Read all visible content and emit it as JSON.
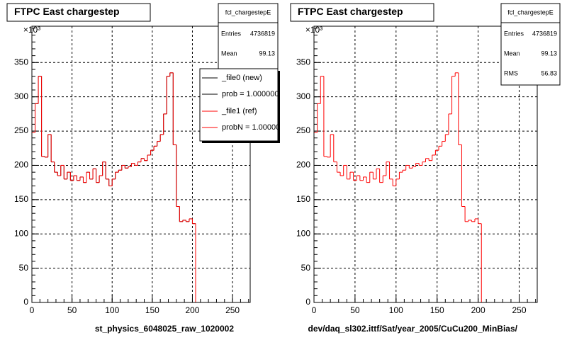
{
  "chart_data": [
    {
      "type": "histogram",
      "title": "FTPC East chargestep",
      "x_label": "st_physics_6048025_raw_1020002",
      "y_multiplier": "×10³",
      "bins": [
        0,
        4,
        8,
        12,
        16,
        20,
        24,
        28,
        32,
        36,
        40,
        44,
        48,
        52,
        56,
        60,
        64,
        68,
        72,
        76,
        80,
        84,
        88,
        92,
        96,
        100,
        104,
        108,
        112,
        116,
        120,
        124,
        128,
        132,
        136,
        140,
        144,
        148,
        152,
        156,
        160,
        164,
        168,
        172,
        176,
        180,
        184,
        188,
        192,
        196,
        200,
        204
      ],
      "series": [
        {
          "name": "_file0 (new)",
          "note": "prob = 1.000000",
          "color": "#000000",
          "values": [
            248,
            290,
            330,
            213,
            212,
            245,
            205,
            190,
            185,
            200,
            180,
            190,
            178,
            185,
            178,
            183,
            175,
            190,
            180,
            195,
            175,
            185,
            205,
            180,
            170,
            180,
            190,
            193,
            200,
            196,
            198,
            203,
            200,
            205,
            210,
            207,
            215,
            222,
            228,
            235,
            245,
            275,
            330,
            335,
            230,
            140,
            118,
            120,
            118,
            122,
            115
          ]
        },
        {
          "name": "_file1 (ref)",
          "note": "probN = 1.00000",
          "color": "#ff0000",
          "values": [
            248,
            290,
            330,
            213,
            212,
            245,
            205,
            190,
            185,
            200,
            180,
            190,
            178,
            185,
            178,
            183,
            175,
            190,
            180,
            195,
            175,
            185,
            205,
            180,
            170,
            180,
            190,
            193,
            200,
            196,
            198,
            203,
            200,
            205,
            210,
            207,
            215,
            222,
            228,
            235,
            245,
            275,
            330,
            335,
            230,
            140,
            118,
            120,
            118,
            122,
            115
          ]
        }
      ],
      "xlim": [
        0,
        272
      ],
      "xticks": [
        0,
        50,
        100,
        150,
        200,
        250
      ],
      "ylim": [
        0,
        403
      ],
      "yticks": [
        0,
        50,
        100,
        150,
        200,
        250,
        300,
        350
      ],
      "grid": true,
      "stats": {
        "title": "fcl_chargestepE",
        "rows": [
          [
            "Entries",
            "4736819"
          ],
          [
            "Mean",
            "99.13"
          ]
        ]
      }
    },
    {
      "type": "histogram",
      "title": "FTPC East chargestep",
      "x_label": "dev/daq_sl302.ittf/Sat/year_2005/CuCu200_MinBias/",
      "y_multiplier": "×10³",
      "bins": [
        0,
        4,
        8,
        12,
        16,
        20,
        24,
        28,
        32,
        36,
        40,
        44,
        48,
        52,
        56,
        60,
        64,
        68,
        72,
        76,
        80,
        84,
        88,
        92,
        96,
        100,
        104,
        108,
        112,
        116,
        120,
        124,
        128,
        132,
        136,
        140,
        144,
        148,
        152,
        156,
        160,
        164,
        168,
        172,
        176,
        180,
        184,
        188,
        192,
        196,
        200,
        204
      ],
      "color": "#ff0000",
      "values": [
        248,
        290,
        330,
        213,
        212,
        245,
        205,
        190,
        185,
        200,
        180,
        190,
        178,
        185,
        178,
        183,
        175,
        190,
        180,
        195,
        175,
        185,
        205,
        180,
        170,
        180,
        190,
        193,
        200,
        196,
        198,
        203,
        200,
        205,
        210,
        207,
        215,
        222,
        228,
        235,
        245,
        275,
        330,
        335,
        230,
        140,
        118,
        120,
        118,
        122,
        115
      ],
      "xlim": [
        0,
        272
      ],
      "xticks": [
        0,
        50,
        100,
        150,
        200,
        250
      ],
      "ylim": [
        0,
        403
      ],
      "yticks": [
        0,
        50,
        100,
        150,
        200,
        250,
        300,
        350
      ],
      "grid": true,
      "stats": {
        "title": "fcl_chargestepE",
        "rows": [
          [
            "Entries",
            "4736819"
          ],
          [
            "Mean",
            "99.13"
          ],
          [
            "RMS",
            "56.83"
          ]
        ]
      }
    }
  ]
}
